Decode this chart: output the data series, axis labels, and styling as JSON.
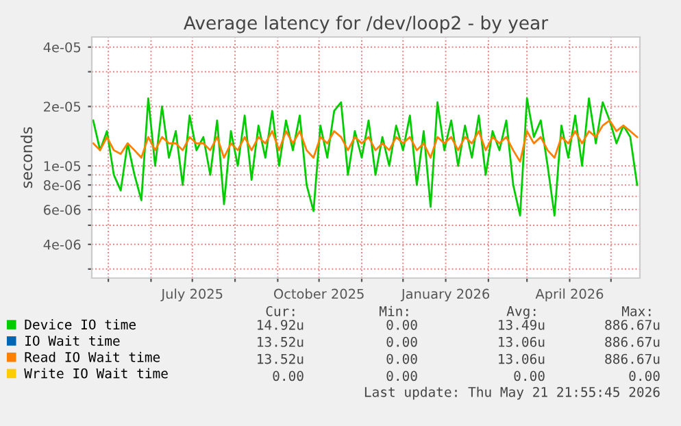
{
  "chart_data": {
    "type": "line",
    "title": "Average latency for /dev/loop2 - by year",
    "ylabel": "seconds",
    "log": true,
    "grid": true,
    "legend": "bottom",
    "xlim": [
      "2025-04-19",
      "2026-05-22"
    ],
    "xticks": [
      {
        "value": "2025-05-01",
        "label": null
      },
      {
        "value": "2025-06-01",
        "label": null
      },
      {
        "value": "2025-07-01",
        "label": "July 2025"
      },
      {
        "value": "2025-08-01",
        "label": null
      },
      {
        "value": "2025-09-01",
        "label": null
      },
      {
        "value": "2025-10-01",
        "label": "October 2025"
      },
      {
        "value": "2025-11-01",
        "label": null
      },
      {
        "value": "2025-12-01",
        "label": null
      },
      {
        "value": "2026-01-01",
        "label": "January 2026"
      },
      {
        "value": "2026-02-01",
        "label": null
      },
      {
        "value": "2026-03-01",
        "label": null
      },
      {
        "value": "2026-04-01",
        "label": "April 2026"
      },
      {
        "value": "2026-05-01",
        "label": null
      }
    ],
    "ylim": [
      2.7e-06,
      4.5e-05
    ],
    "yticks": [
      {
        "value": 3e-06,
        "label": null
      },
      4e-06,
      {
        "value": 5e-06,
        "label": null
      },
      6e-06,
      {
        "value": 7e-06,
        "label": null
      },
      8e-06,
      {
        "value": 9e-06,
        "label": null
      },
      1e-05,
      2e-05,
      {
        "value": 3e-05,
        "label": null
      },
      4e-05
    ],
    "x": [
      "2025-04-20",
      "2025-04-25",
      "2025-04-30",
      "2025-05-05",
      "2025-05-10",
      "2025-05-15",
      "2025-05-20",
      "2025-05-25",
      "2025-05-30",
      "2025-06-04",
      "2025-06-09",
      "2025-06-14",
      "2025-06-19",
      "2025-06-24",
      "2025-06-29",
      "2025-07-04",
      "2025-07-09",
      "2025-07-14",
      "2025-07-19",
      "2025-07-24",
      "2025-07-29",
      "2025-08-03",
      "2025-08-08",
      "2025-08-13",
      "2025-08-18",
      "2025-08-23",
      "2025-08-28",
      "2025-09-02",
      "2025-09-07",
      "2025-09-12",
      "2025-09-17",
      "2025-09-22",
      "2025-09-27",
      "2025-10-02",
      "2025-10-07",
      "2025-10-12",
      "2025-10-17",
      "2025-10-22",
      "2025-10-27",
      "2025-11-01",
      "2025-11-06",
      "2025-11-11",
      "2025-11-16",
      "2025-11-21",
      "2025-11-26",
      "2025-12-01",
      "2025-12-06",
      "2025-12-11",
      "2025-12-16",
      "2025-12-21",
      "2025-12-26",
      "2025-12-31",
      "2026-01-05",
      "2026-01-10",
      "2026-01-15",
      "2026-01-20",
      "2026-01-25",
      "2026-01-30",
      "2026-02-04",
      "2026-02-09",
      "2026-02-14",
      "2026-02-19",
      "2026-02-24",
      "2026-03-01",
      "2026-03-06",
      "2026-03-11",
      "2026-03-16",
      "2026-03-21",
      "2026-03-26",
      "2026-03-31",
      "2026-04-05",
      "2026-04-10",
      "2026-04-15",
      "2026-04-20",
      "2026-04-25",
      "2026-04-30",
      "2026-05-05",
      "2026-05-10",
      "2026-05-15",
      "2026-05-20"
    ],
    "series": [
      {
        "name": "Device IO time",
        "color": "#00cc00",
        "values": [
          1.7e-05,
          1.2e-05,
          1.5e-05,
          9e-06,
          7.5e-06,
          1.3e-05,
          9e-06,
          6.7e-06,
          2.2e-05,
          1e-05,
          2e-05,
          1.1e-05,
          1.5e-05,
          8e-06,
          1.8e-05,
          1.2e-05,
          1.4e-05,
          9e-06,
          1.7e-05,
          6.4e-06,
          1.5e-05,
          1e-05,
          1.8e-05,
          8.5e-06,
          1.6e-05,
          1.1e-05,
          1.9e-05,
          1e-05,
          1.7e-05,
          1.2e-05,
          1.8e-05,
          8e-06,
          5.9e-06,
          1.6e-05,
          1.1e-05,
          1.9e-05,
          2.1e-05,
          9e-06,
          1.5e-05,
          1.1e-05,
          1.7e-05,
          9e-06,
          1.4e-05,
          1e-05,
          1.6e-05,
          1.2e-05,
          1.8e-05,
          8e-06,
          1.5e-05,
          6.2e-06,
          2.1e-05,
          1.2e-05,
          1.7e-05,
          1e-05,
          1.6e-05,
          1.1e-05,
          1.8e-05,
          9e-06,
          1.5e-05,
          1.2e-05,
          1.7e-05,
          8e-06,
          5.6e-06,
          2.2e-05,
          1.4e-05,
          1.7e-05,
          1e-05,
          5.6e-06,
          1.6e-05,
          1.1e-05,
          1.8e-05,
          1e-05,
          2.2e-05,
          1.3e-05,
          2.1e-05,
          1.7e-05,
          1.3e-05,
          1.6e-05,
          1.4e-05,
          8e-06
        ]
      },
      {
        "name": "IO Wait time",
        "color": "#0066b3",
        "values": [
          null,
          null,
          null,
          null,
          null,
          null,
          null,
          null,
          null,
          null,
          null,
          null,
          null,
          null,
          null,
          null,
          null,
          null,
          null,
          null,
          null,
          null,
          null,
          null,
          null,
          null,
          null,
          null,
          null,
          null,
          null,
          null,
          null,
          null,
          null,
          null,
          null,
          null,
          null,
          null,
          null,
          null,
          null,
          null,
          null,
          null,
          null,
          null,
          null,
          null,
          null,
          null,
          null,
          null,
          null,
          null,
          null,
          null,
          null,
          null,
          null,
          null,
          null,
          null,
          null,
          null,
          null,
          null,
          null,
          null,
          null,
          null,
          null,
          null,
          null,
          null,
          null,
          null,
          null,
          null
        ]
      },
      {
        "name": "Read IO Wait time",
        "color": "#ff8000",
        "values": [
          1.3e-05,
          1.2e-05,
          1.4e-05,
          1.2e-05,
          1.15e-05,
          1.3e-05,
          1.2e-05,
          1.1e-05,
          1.4e-05,
          1.2e-05,
          1.4e-05,
          1.3e-05,
          1.3e-05,
          1.2e-05,
          1.4e-05,
          1.3e-05,
          1.3e-05,
          1.2e-05,
          1.4e-05,
          1.1e-05,
          1.3e-05,
          1.2e-05,
          1.4e-05,
          1.2e-05,
          1.4e-05,
          1.3e-05,
          1.5e-05,
          1.2e-05,
          1.5e-05,
          1.3e-05,
          1.5e-05,
          1.2e-05,
          1.1e-05,
          1.4e-05,
          1.3e-05,
          1.5e-05,
          1.4e-05,
          1.2e-05,
          1.4e-05,
          1.3e-05,
          1.4e-05,
          1.2e-05,
          1.3e-05,
          1.2e-05,
          1.4e-05,
          1.3e-05,
          1.4e-05,
          1.2e-05,
          1.3e-05,
          1.1e-05,
          1.4e-05,
          1.3e-05,
          1.4e-05,
          1.2e-05,
          1.4e-05,
          1.3e-05,
          1.5e-05,
          1.2e-05,
          1.4e-05,
          1.3e-05,
          1.4e-05,
          1.2e-05,
          1.05e-05,
          1.5e-05,
          1.3e-05,
          1.4e-05,
          1.2e-05,
          1.1e-05,
          1.4e-05,
          1.3e-05,
          1.5e-05,
          1.3e-05,
          1.5e-05,
          1.4e-05,
          1.6e-05,
          1.7e-05,
          1.5e-05,
          1.6e-05,
          1.5e-05,
          1.4e-05
        ]
      },
      {
        "name": "Write IO Wait time",
        "color": "#ffcc00",
        "values": [
          null,
          null,
          null,
          null,
          null,
          null,
          null,
          null,
          null,
          null,
          null,
          null,
          null,
          null,
          null,
          null,
          null,
          null,
          null,
          null,
          null,
          null,
          null,
          null,
          null,
          null,
          null,
          null,
          null,
          null,
          null,
          null,
          null,
          null,
          null,
          null,
          null,
          null,
          null,
          null,
          null,
          null,
          null,
          null,
          null,
          null,
          null,
          null,
          null,
          null,
          null,
          null,
          null,
          null,
          null,
          null,
          null,
          null,
          null,
          null,
          null,
          null,
          null,
          null,
          null,
          null,
          null,
          null,
          null,
          null,
          null,
          null,
          null,
          null,
          null,
          null,
          null,
          null,
          null,
          null
        ]
      }
    ],
    "annotations": [
      "Cur:",
      "Min:",
      "Avg:",
      "Max:",
      "14.92u",
      "0.00",
      "13.49u",
      "886.67u",
      "13.52u",
      "0.00",
      "13.06u",
      "886.67u",
      "13.52u",
      "0.00",
      "13.06u",
      "886.67u",
      "0.00",
      "0.00",
      "0.00",
      "0.00",
      "Last update: Thu May 21 21:55:45 2026"
    ]
  }
}
